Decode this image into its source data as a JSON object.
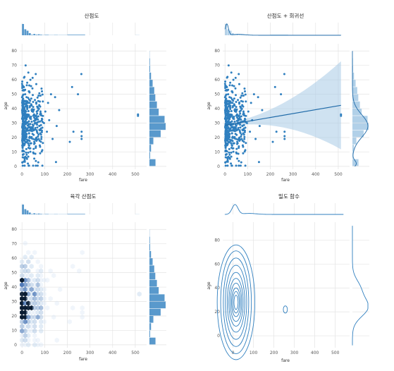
{
  "figure": {
    "background": "#ffffff",
    "accent": "#2f7fbf"
  },
  "chart_data": [
    {
      "type": "scatter",
      "title": "산점도",
      "xlabel": "fare",
      "ylabel": "age",
      "xlim": [
        -10,
        550
      ],
      "ylim": [
        -2,
        85
      ],
      "xticks": [
        0,
        100,
        200,
        300,
        400,
        500
      ],
      "yticks": [
        0,
        10,
        20,
        30,
        40,
        50,
        60,
        70,
        80
      ],
      "marginal": "histogram",
      "points": [
        [
          2,
          22
        ],
        [
          3,
          35
        ],
        [
          5,
          40
        ],
        [
          6,
          28
        ],
        [
          7,
          19
        ],
        [
          8,
          55
        ],
        [
          8,
          30
        ],
        [
          9,
          24
        ],
        [
          10,
          45
        ],
        [
          11,
          62
        ],
        [
          12,
          18
        ],
        [
          13,
          33
        ],
        [
          14,
          50
        ],
        [
          15,
          27
        ],
        [
          16,
          70
        ],
        [
          17,
          21
        ],
        [
          18,
          38
        ],
        [
          19,
          12
        ],
        [
          20,
          48
        ],
        [
          21,
          30
        ],
        [
          22,
          25
        ],
        [
          23,
          58
        ],
        [
          24,
          42
        ],
        [
          25,
          36
        ],
        [
          26,
          2
        ],
        [
          27,
          16
        ],
        [
          28,
          65
        ],
        [
          29,
          29
        ],
        [
          30,
          52
        ],
        [
          31,
          23
        ],
        [
          33,
          44
        ],
        [
          35,
          34
        ],
        [
          37,
          60
        ],
        [
          39,
          20
        ],
        [
          41,
          47
        ],
        [
          43,
          31
        ],
        [
          46,
          54
        ],
        [
          48,
          26
        ],
        [
          51,
          39
        ],
        [
          54,
          17
        ],
        [
          57,
          46
        ],
        [
          60,
          32
        ],
        [
          63,
          57
        ],
        [
          66,
          24
        ],
        [
          70,
          41
        ],
        [
          73,
          49
        ],
        [
          77,
          28
        ],
        [
          80,
          36
        ],
        [
          84,
          22
        ],
        [
          88,
          52
        ],
        [
          92,
          45
        ],
        [
          97,
          30
        ],
        [
          103,
          38
        ],
        [
          110,
          24
        ],
        [
          115,
          44
        ],
        [
          120,
          32
        ],
        [
          128,
          50
        ],
        [
          135,
          19
        ],
        [
          146,
          48
        ],
        [
          150,
          3
        ],
        [
          153,
          28
        ],
        [
          164,
          39
        ],
        [
          211,
          17
        ],
        [
          221,
          55
        ],
        [
          227,
          24
        ],
        [
          247,
          50
        ],
        [
          262,
          64
        ],
        [
          263,
          21
        ],
        [
          263,
          19
        ],
        [
          263,
          24
        ],
        [
          512,
          35
        ],
        [
          512,
          36
        ]
      ],
      "histogram_y": [
        {
          "range": [
            0,
            5
          ],
          "count": 34
        },
        {
          "range": [
            5,
            10
          ],
          "count": 4
        },
        {
          "range": [
            10,
            15
          ],
          "count": 9
        },
        {
          "range": [
            15,
            20
          ],
          "count": 22
        },
        {
          "range": [
            20,
            25
          ],
          "count": 63
        },
        {
          "range": [
            25,
            30
          ],
          "count": 91
        },
        {
          "range": [
            30,
            35
          ],
          "count": 85
        },
        {
          "range": [
            35,
            40
          ],
          "count": 52
        },
        {
          "range": [
            40,
            45
          ],
          "count": 42
        },
        {
          "range": [
            45,
            50
          ],
          "count": 33
        },
        {
          "range": [
            50,
            55
          ],
          "count": 27
        },
        {
          "range": [
            55,
            60
          ],
          "count": 18
        },
        {
          "range": [
            60,
            65
          ],
          "count": 9
        },
        {
          "range": [
            65,
            70
          ],
          "count": 4
        },
        {
          "range": [
            70,
            75
          ],
          "count": 3
        },
        {
          "range": [
            75,
            80
          ],
          "count": 1
        }
      ],
      "histogram_x": [
        {
          "range": [
            0,
            10
          ],
          "count": 336
        },
        {
          "range": [
            10,
            20
          ],
          "count": 179
        },
        {
          "range": [
            20,
            30
          ],
          "count": 136
        },
        {
          "range": [
            30,
            40
          ],
          "count": 64
        },
        {
          "range": [
            40,
            50
          ],
          "count": 15
        },
        {
          "range": [
            50,
            60
          ],
          "count": 39
        },
        {
          "range": [
            60,
            70
          ],
          "count": 17
        },
        {
          "range": [
            70,
            80
          ],
          "count": 29
        },
        {
          "range": [
            80,
            90
          ],
          "count": 17
        },
        {
          "range": [
            90,
            100
          ],
          "count": 7
        },
        {
          "range": [
            100,
            120
          ],
          "count": 13
        },
        {
          "range": [
            120,
            140
          ],
          "count": 6
        },
        {
          "range": [
            140,
            160
          ],
          "count": 9
        },
        {
          "range": [
            160,
            200
          ],
          "count": 6
        },
        {
          "range": [
            200,
            280
          ],
          "count": 17
        },
        {
          "range": [
            500,
            520
          ],
          "count": 3
        }
      ]
    },
    {
      "type": "scatter",
      "title": "산점도 + 회귀선",
      "xlabel": "fare",
      "ylabel": "age",
      "xlim": [
        -10,
        550
      ],
      "ylim": [
        -2,
        85
      ],
      "xticks": [
        0,
        100,
        200,
        300,
        400,
        500
      ],
      "yticks": [
        0,
        10,
        20,
        30,
        40,
        50,
        60,
        70,
        80
      ],
      "marginal": "histogram+kde",
      "regression": {
        "intercept": 28.5,
        "slope": 0.027,
        "band_x": [
          0,
          512
        ]
      }
    },
    {
      "type": "heatmap",
      "title": "육각 산점도",
      "xlabel": "fare",
      "ylabel": "age",
      "xlim": [
        -10,
        550
      ],
      "ylim": [
        -2,
        85
      ],
      "xticks": [
        0,
        100,
        200,
        300,
        400,
        500
      ],
      "yticks": [
        0,
        10,
        20,
        30,
        40,
        50,
        60,
        70,
        80
      ],
      "marginal": "histogram"
    },
    {
      "type": "line",
      "title": "밀도 함수",
      "xlabel": "fare",
      "ylabel": "age",
      "xlim": [
        -50,
        570
      ],
      "ylim": [
        -10,
        95
      ],
      "xticks": [
        0,
        100,
        200,
        300,
        400,
        500
      ],
      "yticks": [
        0,
        20,
        40,
        60,
        80
      ],
      "marginal": "kde",
      "contours": [
        {
          "cx": 15,
          "cy": 28,
          "rx": [
            10,
            16,
            22,
            28,
            35,
            43,
            52,
            62,
            75,
            92
          ],
          "ry": [
            6,
            9,
            12,
            16,
            20,
            25,
            31,
            37,
            43,
            48
          ]
        },
        {
          "cx": 256,
          "cy": 22,
          "rx": [
            10
          ],
          "ry": [
            3
          ]
        }
      ]
    }
  ]
}
